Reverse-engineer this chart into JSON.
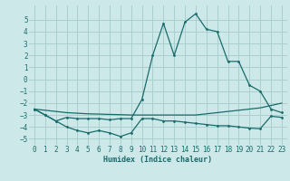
{
  "xlabel": "Humidex (Indice chaleur)",
  "bg_color": "#cce8e8",
  "grid_color": "#aacfcf",
  "line_color": "#1a6b6b",
  "xlim": [
    -0.5,
    23.5
  ],
  "ylim": [
    -5.5,
    6.2
  ],
  "yticks": [
    -5,
    -4,
    -3,
    -2,
    -1,
    0,
    1,
    2,
    3,
    4,
    5
  ],
  "xticks": [
    0,
    1,
    2,
    3,
    4,
    5,
    6,
    7,
    8,
    9,
    10,
    11,
    12,
    13,
    14,
    15,
    16,
    17,
    18,
    19,
    20,
    21,
    22,
    23
  ],
  "spike_x": [
    0,
    1,
    2,
    3,
    4,
    5,
    6,
    7,
    8,
    9,
    10,
    11,
    12,
    13,
    14,
    15,
    16,
    17,
    18,
    19,
    20,
    21,
    22,
    23
  ],
  "spike_y": [
    -2.5,
    -3.0,
    -3.5,
    -3.2,
    -3.3,
    -3.3,
    -3.3,
    -3.4,
    -3.3,
    -3.3,
    -1.7,
    2.0,
    4.7,
    2.0,
    4.8,
    5.5,
    4.2,
    4.0,
    1.5,
    1.5,
    -0.5,
    -1.0,
    -2.5,
    -2.8
  ],
  "diag_x": [
    0,
    1,
    2,
    3,
    4,
    5,
    6,
    7,
    8,
    9,
    10,
    11,
    12,
    13,
    14,
    15,
    16,
    17,
    18,
    19,
    20,
    21,
    22,
    23
  ],
  "diag_y": [
    -2.5,
    -2.6,
    -2.7,
    -2.8,
    -2.85,
    -2.9,
    -2.92,
    -2.95,
    -2.97,
    -3.0,
    -3.0,
    -3.0,
    -3.0,
    -3.0,
    -3.0,
    -3.0,
    -2.9,
    -2.8,
    -2.7,
    -2.6,
    -2.5,
    -2.4,
    -2.2,
    -2.0
  ],
  "low_x": [
    0,
    1,
    2,
    3,
    4,
    5,
    6,
    7,
    8,
    9,
    10,
    11,
    12,
    13,
    14,
    15,
    16,
    17,
    18,
    19,
    20,
    21,
    22,
    23
  ],
  "low_y": [
    -2.5,
    -3.0,
    -3.5,
    -4.0,
    -4.3,
    -4.5,
    -4.3,
    -4.5,
    -4.8,
    -4.5,
    -3.3,
    -3.3,
    -3.5,
    -3.5,
    -3.6,
    -3.7,
    -3.8,
    -3.9,
    -3.9,
    -4.0,
    -4.1,
    -4.15,
    -3.1,
    -3.2
  ]
}
